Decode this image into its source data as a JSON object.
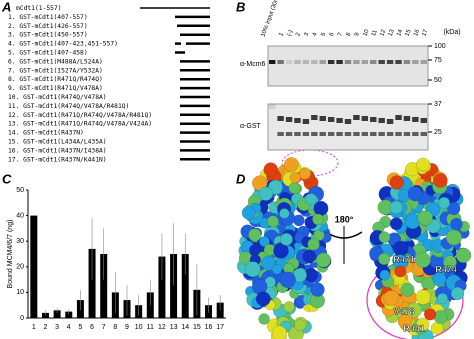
{
  "panel_a": {
    "letter": "A",
    "constructs": [
      "mCdt1(1-557)",
      "1. GST-mCdt1(407-557)",
      "2. GST-mCdt1(426-557)",
      "3. GST-mCdt1(450-557)",
      "4. GST-mCdt1(407-423,451-557)",
      "5. GST-mCdt1(407-458)",
      "6. GST-mCdt1(M488A/L524A)",
      "7. GST-mCdt1(I527A/Y532A)",
      "8. GST-mCdt1(R471Q/R474Q)",
      "9. GST-mCdt1(R471Q/V478A)",
      "10. GST-mCdt1(R474Q/V478A)",
      "11. GST-mCdt1(R474Q/V478A/R481Q)",
      "12. GST-mCdt1(R471Q/R474Q/V478A/R481Q)",
      "13. GST-mCdt1(R471Q/R474Q/V478A/V424A)",
      "14. GST-mCdt1(R437N)",
      "15. GST-mCdt1(L434A/L435A)",
      "16. GST-mCdt1(R437N/I438A)",
      "17. GST-mCdt1(R437N/K441N)"
    ]
  },
  "panel_b": {
    "letter": "B",
    "lanes": [
      "10% input (30ng)",
      "1",
      "(-)",
      "2",
      "3",
      "4",
      "5",
      "6",
      "7",
      "8",
      "9",
      "10",
      "11",
      "12",
      "13",
      "14",
      "15",
      "16",
      "17"
    ],
    "blot_labels": [
      "α-Mcm6",
      "α-GST"
    ],
    "unit": "(kDa)",
    "markers": [
      "100",
      "75",
      "50",
      "37",
      "25"
    ]
  },
  "chart_data": {
    "type": "bar",
    "letter": "C",
    "ylabel": "Bound MCM4/6/7 (ng)",
    "categories": [
      "1",
      "2",
      "3",
      "4",
      "5",
      "6",
      "7",
      "8",
      "9",
      "10",
      "11",
      "12",
      "13",
      "14",
      "15",
      "16",
      "17"
    ],
    "values": [
      40,
      2,
      3,
      2.5,
      7,
      27,
      25,
      10,
      7,
      5,
      10,
      24,
      25,
      25,
      11,
      5,
      6
    ],
    "errors": [
      0,
      1,
      1,
      1,
      4,
      12,
      10,
      8,
      6,
      4,
      5,
      9,
      12,
      8,
      10,
      3,
      3
    ],
    "color": "#000000",
    "ylim": [
      0,
      50
    ],
    "yticks": [
      0,
      10,
      20,
      30,
      40,
      50
    ]
  },
  "panel_d": {
    "letter": "D",
    "rotation": "180°",
    "residues": [
      "R471",
      "R474",
      "V478",
      "R481"
    ]
  }
}
